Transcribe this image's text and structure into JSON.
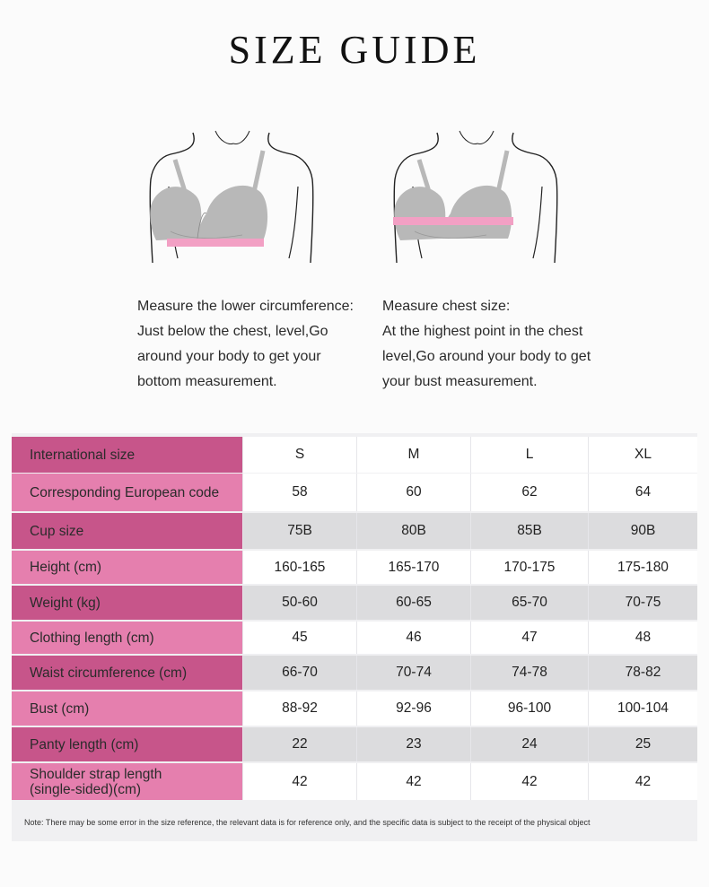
{
  "title": "SIZE GUIDE",
  "instructions": {
    "left": [
      "Measure the lower circumference:",
      "Just below the chest, level,Go",
      "around your body to get your",
      "bottom measurement."
    ],
    "right": [
      "Measure chest size:",
      "At the highest point in the chest",
      "level,Go around your body to get",
      "your bust measurement."
    ]
  },
  "table": {
    "rows": [
      {
        "label": "International size",
        "values": [
          "S",
          "M",
          "L",
          "XL"
        ]
      },
      {
        "label": "Corresponding European code",
        "values": [
          "58",
          "60",
          "62",
          "64"
        ]
      },
      {
        "label": "Cup size",
        "values": [
          "75B",
          "80B",
          "85B",
          "90B"
        ]
      },
      {
        "label": "Height (cm)",
        "values": [
          "160-165",
          "165-170",
          "170-175",
          "175-180"
        ]
      },
      {
        "label": "Weight (kg)",
        "values": [
          "50-60",
          "60-65",
          "65-70",
          "70-75"
        ]
      },
      {
        "label": "Clothing length (cm)",
        "values": [
          "45",
          "46",
          "47",
          "48"
        ]
      },
      {
        "label": "Waist circumference (cm)",
        "values": [
          "66-70",
          "70-74",
          "74-78",
          "78-82"
        ]
      },
      {
        "label": "Bust (cm)",
        "values": [
          "88-92",
          "92-96",
          "96-100",
          "100-104"
        ]
      },
      {
        "label": "Panty length (cm)",
        "values": [
          "22",
          "23",
          "24",
          "25"
        ]
      },
      {
        "label_lines": [
          "Shoulder strap length",
          "(single-sided)(cm)"
        ],
        "values": [
          "42",
          "42",
          "42",
          "42"
        ]
      }
    ]
  },
  "note": "Note: There may be some error in the size reference, the relevant data is for reference only, and the specific data is subject to the receipt of the physical object",
  "colors": {
    "label_dark": "#c7558a",
    "label_light": "#e57fae",
    "measure_band": "#f2a0c4",
    "bra_gray": "#b8b8b8"
  }
}
